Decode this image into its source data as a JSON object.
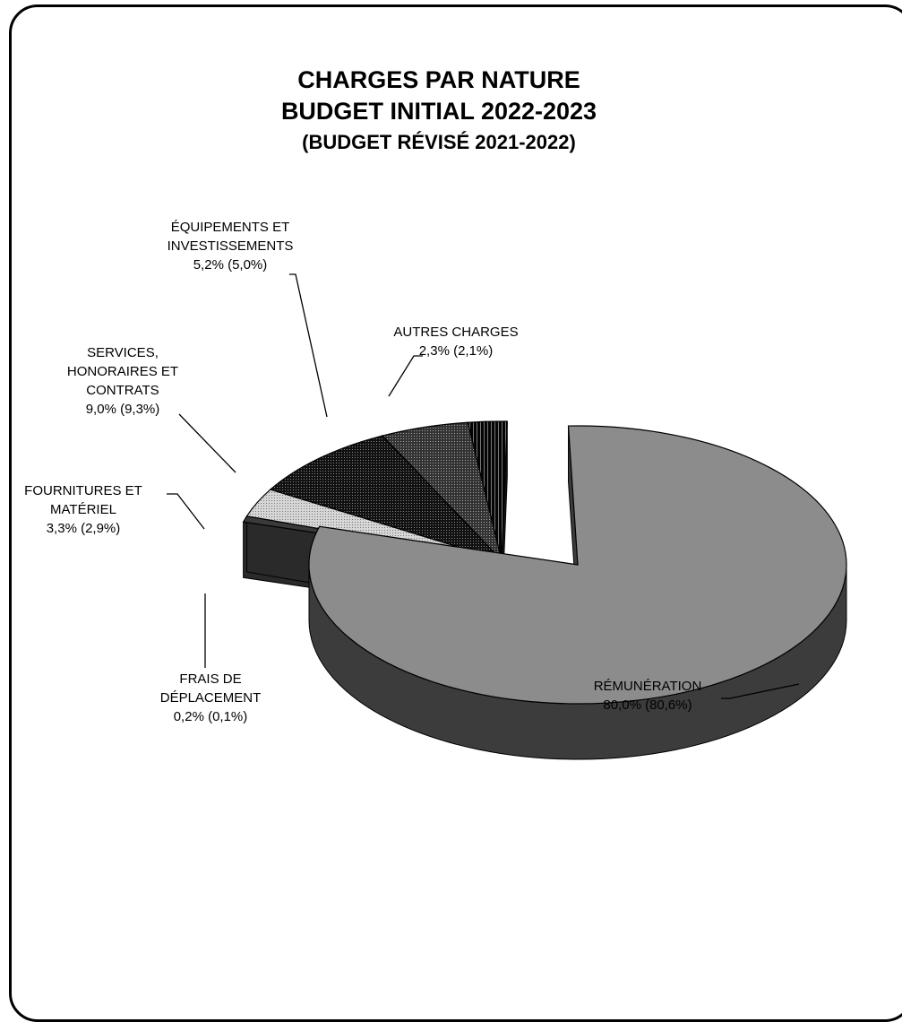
{
  "chart_data": {
    "type": "pie",
    "title": [
      "CHARGES PAR NATURE",
      "BUDGET INITIAL 2022-2023",
      "(BUDGET RÉVISÉ 2021-2022)"
    ],
    "three_d": true,
    "exploded": true,
    "slices": [
      {
        "label": [
          "RÉMUNÉRATION"
        ],
        "value": 80.0,
        "previous": 80.6,
        "value_text": "80,0% (80,6%)",
        "color": "#8c8c8c",
        "pattern": "none"
      },
      {
        "label": [
          "FRAIS DE",
          "DÉPLACEMENT"
        ],
        "value": 0.2,
        "previous": 0.1,
        "value_text": "0,2% (0,1%)",
        "color": "#3a3a3a",
        "pattern": "none"
      },
      {
        "label": [
          "FOURNITURES ET",
          "MATÉRIEL"
        ],
        "value": 3.3,
        "previous": 2.9,
        "value_text": "3,3% (2,9%)",
        "color": "#c8c8c8",
        "pattern": "dots"
      },
      {
        "label": [
          "SERVICES,",
          "HONORAIRES ET",
          "CONTRATS"
        ],
        "value": 9.0,
        "previous": 9.3,
        "value_text": "9,0% (9,3%)",
        "color": "#2a2a2a",
        "pattern": "grid"
      },
      {
        "label": [
          "ÉQUIPEMENTS ET",
          "INVESTISSEMENTS"
        ],
        "value": 5.2,
        "previous": 5.0,
        "value_text": "5,2% (5,0%)",
        "color": "#5a5a5a",
        "pattern": "grid"
      },
      {
        "label": [
          "AUTRES CHARGES"
        ],
        "value": 2.3,
        "previous": 2.1,
        "value_text": "2,3% (2,1%)",
        "color": "#1a1a1a",
        "pattern": "hatch"
      }
    ]
  }
}
